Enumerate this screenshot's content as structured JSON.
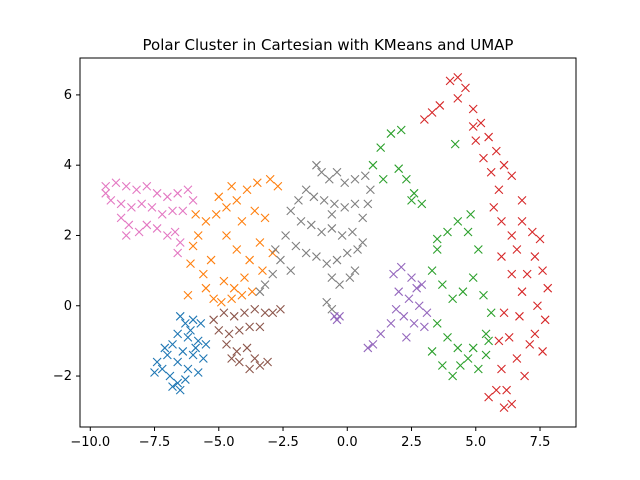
{
  "chart_data": {
    "type": "scatter",
    "title": "Polar Cluster in Cartesian with KMeans and UMAP",
    "xlabel": "",
    "ylabel": "",
    "xlim": [
      -10.4,
      8.9
    ],
    "ylim": [
      -3.45,
      7.05
    ],
    "xticks": [
      -10.0,
      -7.5,
      -5.0,
      -2.5,
      0.0,
      2.5,
      5.0,
      7.5
    ],
    "xtick_labels": [
      "−10.0",
      "−7.5",
      "−5.0",
      "−2.5",
      "0.0",
      "2.5",
      "5.0",
      "7.5"
    ],
    "yticks": [
      -2,
      0,
      2,
      4,
      6
    ],
    "ytick_labels": [
      "−2",
      "0",
      "2",
      "4",
      "6"
    ],
    "grid": false,
    "legend": "none",
    "marker": "x",
    "series": [
      {
        "color": "#1f77b4",
        "points": [
          [
            -6.5,
            -0.3
          ],
          [
            -6.3,
            -0.5
          ],
          [
            -6.0,
            -0.4
          ],
          [
            -5.7,
            -0.5
          ],
          [
            -6.6,
            -0.8
          ],
          [
            -6.2,
            -0.9
          ],
          [
            -5.8,
            -1.0
          ],
          [
            -5.5,
            -1.1
          ],
          [
            -6.8,
            -1.1
          ],
          [
            -6.4,
            -1.3
          ],
          [
            -6.0,
            -1.4
          ],
          [
            -5.6,
            -1.5
          ],
          [
            -7.0,
            -1.4
          ],
          [
            -6.6,
            -1.6
          ],
          [
            -6.2,
            -1.8
          ],
          [
            -5.8,
            -1.9
          ],
          [
            -7.4,
            -1.6
          ],
          [
            -7.2,
            -1.8
          ],
          [
            -6.9,
            -2.0
          ],
          [
            -6.6,
            -2.2
          ],
          [
            -6.3,
            -2.1
          ],
          [
            -6.8,
            -2.3
          ],
          [
            -7.5,
            -1.9
          ],
          [
            -6.1,
            -0.7
          ],
          [
            -5.9,
            -1.2
          ],
          [
            -6.5,
            -2.4
          ],
          [
            -7.1,
            -1.2
          ]
        ]
      },
      {
        "color": "#ff7f0e",
        "points": [
          [
            -5.2,
            0.2
          ],
          [
            -4.9,
            0.1
          ],
          [
            -4.5,
            0.2
          ],
          [
            -4.1,
            0.3
          ],
          [
            -3.7,
            0.4
          ],
          [
            -5.5,
            0.5
          ],
          [
            -5.6,
            0.9
          ],
          [
            -5.3,
            1.3
          ],
          [
            -4.8,
            0.7
          ],
          [
            -4.4,
            0.5
          ],
          [
            -6.1,
            1.2
          ],
          [
            -6.0,
            1.7
          ],
          [
            -5.8,
            2.0
          ],
          [
            -5.5,
            2.4
          ],
          [
            -5.1,
            2.6
          ],
          [
            -4.7,
            2.8
          ],
          [
            -4.3,
            3.0
          ],
          [
            -3.9,
            3.3
          ],
          [
            -3.5,
            3.5
          ],
          [
            -4.1,
            2.4
          ],
          [
            -3.6,
            2.7
          ],
          [
            -3.2,
            2.5
          ],
          [
            -3.4,
            1.8
          ],
          [
            -3.8,
            1.3
          ],
          [
            -4.3,
            1.6
          ],
          [
            -4.7,
            2.0
          ],
          [
            -3.0,
            3.6
          ],
          [
            -2.7,
            3.4
          ],
          [
            -2.9,
            1.5
          ],
          [
            -3.3,
            1.0
          ],
          [
            -5.0,
            3.1
          ],
          [
            -4.5,
            3.4
          ],
          [
            -5.9,
            2.6
          ],
          [
            -6.2,
            0.3
          ],
          [
            -4.0,
            0.8
          ]
        ]
      },
      {
        "color": "#2ca02c",
        "points": [
          [
            1.0,
            4.0
          ],
          [
            1.3,
            4.5
          ],
          [
            1.7,
            4.9
          ],
          [
            2.1,
            5.0
          ],
          [
            2.0,
            3.9
          ],
          [
            2.3,
            3.6
          ],
          [
            2.6,
            3.2
          ],
          [
            2.9,
            2.9
          ],
          [
            2.5,
            3.0
          ],
          [
            3.5,
            1.6
          ],
          [
            3.9,
            2.1
          ],
          [
            4.3,
            2.4
          ],
          [
            4.7,
            2.1
          ],
          [
            5.1,
            1.6
          ],
          [
            3.3,
            1.0
          ],
          [
            3.7,
            0.6
          ],
          [
            4.1,
            0.2
          ],
          [
            4.5,
            0.4
          ],
          [
            4.9,
            0.8
          ],
          [
            5.3,
            0.3
          ],
          [
            5.6,
            -0.2
          ],
          [
            5.4,
            -0.8
          ],
          [
            3.5,
            -0.5
          ],
          [
            3.9,
            -0.9
          ],
          [
            4.3,
            -1.2
          ],
          [
            4.7,
            -1.5
          ],
          [
            5.1,
            -1.8
          ],
          [
            5.4,
            -1.4
          ],
          [
            3.3,
            -1.3
          ],
          [
            3.7,
            -1.7
          ],
          [
            4.1,
            -2.0
          ],
          [
            4.4,
            -1.7
          ],
          [
            4.9,
            -1.2
          ],
          [
            5.5,
            -1.0
          ],
          [
            4.2,
            4.6
          ],
          [
            1.4,
            3.6
          ],
          [
            4.8,
            2.6
          ],
          [
            3.5,
            1.9
          ]
        ]
      },
      {
        "color": "#d62728",
        "points": [
          [
            4.0,
            6.4
          ],
          [
            4.3,
            6.5
          ],
          [
            4.6,
            6.2
          ],
          [
            4.3,
            5.9
          ],
          [
            3.6,
            5.7
          ],
          [
            3.0,
            5.3
          ],
          [
            3.3,
            5.5
          ],
          [
            4.9,
            5.6
          ],
          [
            5.2,
            5.2
          ],
          [
            5.5,
            4.8
          ],
          [
            5.8,
            4.4
          ],
          [
            6.1,
            4.0
          ],
          [
            6.4,
            3.7
          ],
          [
            5.0,
            4.7
          ],
          [
            5.3,
            4.2
          ],
          [
            5.6,
            3.8
          ],
          [
            5.9,
            3.3
          ],
          [
            5.7,
            2.8
          ],
          [
            6.0,
            2.4
          ],
          [
            6.4,
            2.0
          ],
          [
            6.8,
            2.4
          ],
          [
            7.2,
            2.1
          ],
          [
            7.5,
            1.9
          ],
          [
            7.3,
            1.4
          ],
          [
            7.6,
            1.0
          ],
          [
            7.8,
            0.5
          ],
          [
            7.4,
            0.0
          ],
          [
            7.7,
            -0.4
          ],
          [
            7.3,
            -0.8
          ],
          [
            7.6,
            -1.3
          ],
          [
            6.8,
            0.4
          ],
          [
            6.4,
            0.9
          ],
          [
            6.7,
            -0.3
          ],
          [
            6.3,
            -0.9
          ],
          [
            6.6,
            -1.5
          ],
          [
            6.9,
            -2.0
          ],
          [
            6.2,
            -2.4
          ],
          [
            6.4,
            -2.8
          ],
          [
            6.1,
            -2.9
          ],
          [
            5.8,
            -2.4
          ],
          [
            6.0,
            -1.8
          ],
          [
            5.9,
            -1.0
          ],
          [
            6.1,
            -0.2
          ],
          [
            6.0,
            1.4
          ],
          [
            6.6,
            1.6
          ],
          [
            7.0,
            0.9
          ],
          [
            5.5,
            -2.6
          ],
          [
            7.1,
            -1.1
          ],
          [
            4.9,
            5.1
          ],
          [
            6.8,
            3.0
          ]
        ]
      },
      {
        "color": "#9467bd",
        "points": [
          [
            1.8,
            0.9
          ],
          [
            2.1,
            1.1
          ],
          [
            2.5,
            0.8
          ],
          [
            2.9,
            0.6
          ],
          [
            2.0,
            0.4
          ],
          [
            2.4,
            0.2
          ],
          [
            2.8,
            0.0
          ],
          [
            3.1,
            -0.2
          ],
          [
            2.2,
            -0.3
          ],
          [
            2.6,
            -0.5
          ],
          [
            3.0,
            -0.6
          ],
          [
            1.7,
            -0.5
          ],
          [
            1.3,
            -0.8
          ],
          [
            1.0,
            -1.1
          ],
          [
            0.8,
            -1.2
          ],
          [
            2.3,
            -0.9
          ],
          [
            -0.5,
            -0.3
          ],
          [
            -0.4,
            -0.4
          ],
          [
            -0.3,
            -0.3
          ],
          [
            1.9,
            -0.1
          ],
          [
            2.7,
            0.5
          ]
        ]
      },
      {
        "color": "#8c564b",
        "points": [
          [
            -5.2,
            -0.4
          ],
          [
            -4.8,
            -0.2
          ],
          [
            -4.4,
            -0.3
          ],
          [
            -4.0,
            -0.2
          ],
          [
            -3.6,
            -0.1
          ],
          [
            -3.2,
            -0.2
          ],
          [
            -2.9,
            -0.2
          ],
          [
            -2.6,
            -0.1
          ],
          [
            -5.0,
            -0.7
          ],
          [
            -4.6,
            -0.8
          ],
          [
            -4.2,
            -0.7
          ],
          [
            -3.8,
            -0.6
          ],
          [
            -3.4,
            -0.6
          ],
          [
            -4.7,
            -1.1
          ],
          [
            -4.3,
            -1.3
          ],
          [
            -3.9,
            -1.2
          ],
          [
            -3.6,
            -1.5
          ],
          [
            -4.2,
            -1.6
          ],
          [
            -3.8,
            -1.8
          ],
          [
            -3.4,
            -1.7
          ],
          [
            -3.1,
            -1.6
          ],
          [
            -4.5,
            -1.5
          ]
        ]
      },
      {
        "color": "#e377c2",
        "points": [
          [
            -9.4,
            3.4
          ],
          [
            -9.0,
            3.5
          ],
          [
            -8.6,
            3.4
          ],
          [
            -8.2,
            3.3
          ],
          [
            -7.8,
            3.4
          ],
          [
            -7.4,
            3.2
          ],
          [
            -7.0,
            3.1
          ],
          [
            -6.6,
            3.2
          ],
          [
            -6.2,
            3.3
          ],
          [
            -6.0,
            3.0
          ],
          [
            -9.2,
            3.0
          ],
          [
            -8.8,
            2.9
          ],
          [
            -8.4,
            2.8
          ],
          [
            -8.0,
            2.9
          ],
          [
            -7.6,
            2.8
          ],
          [
            -7.2,
            2.6
          ],
          [
            -6.8,
            2.7
          ],
          [
            -6.4,
            2.7
          ],
          [
            -8.8,
            2.5
          ],
          [
            -8.5,
            2.3
          ],
          [
            -8.1,
            2.1
          ],
          [
            -7.8,
            2.3
          ],
          [
            -7.4,
            2.2
          ],
          [
            -7.0,
            2.0
          ],
          [
            -6.7,
            2.1
          ],
          [
            -6.5,
            1.8
          ],
          [
            -6.6,
            1.5
          ],
          [
            -8.6,
            2.0
          ],
          [
            -9.4,
            3.2
          ]
        ]
      },
      {
        "color": "#7f7f7f",
        "points": [
          [
            -1.2,
            4.0
          ],
          [
            -1.0,
            3.8
          ],
          [
            -0.7,
            3.6
          ],
          [
            -0.4,
            3.8
          ],
          [
            -0.1,
            3.5
          ],
          [
            0.3,
            3.6
          ],
          [
            0.7,
            3.7
          ],
          [
            0.9,
            3.3
          ],
          [
            -1.6,
            3.3
          ],
          [
            -1.3,
            3.1
          ],
          [
            -0.9,
            3.0
          ],
          [
            -0.5,
            2.9
          ],
          [
            -0.1,
            2.8
          ],
          [
            0.3,
            2.9
          ],
          [
            0.6,
            2.5
          ],
          [
            -2.2,
            2.7
          ],
          [
            -1.8,
            2.4
          ],
          [
            -1.4,
            2.3
          ],
          [
            -1.0,
            2.1
          ],
          [
            -0.6,
            2.2
          ],
          [
            -0.2,
            2.0
          ],
          [
            0.2,
            2.1
          ],
          [
            0.6,
            1.8
          ],
          [
            -2.4,
            2.0
          ],
          [
            -2.0,
            1.7
          ],
          [
            -1.6,
            1.5
          ],
          [
            -1.2,
            1.4
          ],
          [
            -0.8,
            1.2
          ],
          [
            -0.4,
            1.3
          ],
          [
            0.0,
            1.5
          ],
          [
            0.3,
            1.0
          ],
          [
            -2.6,
            1.3
          ],
          [
            -2.9,
            0.9
          ],
          [
            -3.2,
            0.6
          ],
          [
            -3.4,
            0.4
          ],
          [
            -2.2,
            1.0
          ],
          [
            -0.6,
            0.8
          ],
          [
            -0.3,
            0.6
          ],
          [
            0.1,
            0.8
          ],
          [
            0.4,
            1.6
          ],
          [
            -0.8,
            0.1
          ],
          [
            -0.6,
            -0.1
          ],
          [
            0.8,
            2.9
          ],
          [
            -1.9,
            3.0
          ],
          [
            -0.6,
            2.6
          ],
          [
            -2.8,
            1.6
          ]
        ]
      }
    ]
  }
}
